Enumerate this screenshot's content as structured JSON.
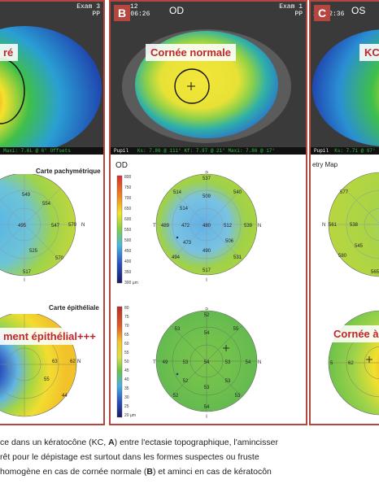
{
  "panel_a": {
    "header_right": "Exam 3",
    "header_right2": "PP",
    "topo_label": "ré",
    "pachy_title": "Carte pachymétrique",
    "pachy_values": [
      "549",
      "554",
      "495",
      "547",
      "579",
      "525",
      "570",
      "517"
    ],
    "pachy_letters": {
      "s": "S",
      "n": "N",
      "i": "I"
    },
    "epi_title": "Carte épithéliale",
    "epi_label": "ment épithélial+++",
    "epi_values": [
      "63",
      "62",
      "55",
      "44"
    ],
    "epi_letters": {
      "n": "N"
    },
    "footer": "Maxi: 7.6L @ 6°     Offsets"
  },
  "panel_b": {
    "tag": "B",
    "time": "19:06:26",
    "header_left_small": "12",
    "eye": "OD",
    "exam": "Exam 1",
    "exam2": "PP",
    "topo_label": "Cornée normale",
    "footer_left": "Pupil",
    "footer": "Ks: 7.86 @ 111°    Kf: 7.97 @ 21°    Maxi: 7.86 @ 17°",
    "od_label": "OD",
    "scale_top": [
      "800",
      "750",
      "700",
      "650",
      "600",
      "550",
      "500",
      "450",
      "400",
      "350",
      "300 µm"
    ],
    "pachy_values": {
      "s": "537",
      "sup": "509",
      "st": "514",
      "sn": "540",
      "t": "489",
      "ct": "472",
      "c": "480",
      "cn": "512",
      "n": "539",
      "it": "473",
      "ci": "490",
      "in": "506",
      "ti": "494",
      "ni": "531",
      "i": "517"
    },
    "pachy_letters": {
      "s": "S",
      "t": "T",
      "n": "N",
      "i": "I"
    },
    "scale_bottom": [
      "80",
      "75",
      "70",
      "65",
      "60",
      "55",
      "50",
      "45",
      "40",
      "35",
      "30",
      "25",
      "20 µm"
    ],
    "epi_values": {
      "s": "52",
      "st": "53",
      "sn": "55",
      "sup": "54",
      "t": "49",
      "ct": "53",
      "c": "54",
      "cn": "53",
      "n": "54",
      "it": "52",
      "ci": "53",
      "in": "53",
      "ti": "52",
      "ni": "53",
      "i": "54"
    },
    "epi_letters": {
      "s": "S",
      "t": "T",
      "n": "N",
      "i": "I"
    }
  },
  "panel_c": {
    "tag": "C",
    "time": "10:52:36",
    "eye": "OS",
    "topo_label": "KC",
    "footer_left": "Pupil",
    "footer": "Ks: 7.71 @ 97°",
    "pachy_title": "etry Map",
    "pachy_values": [
      "577",
      "561",
      "538",
      "545",
      "580",
      "565"
    ],
    "pachy_letters": {
      "n": "N"
    },
    "epi_label": "Cornée à",
    "epi_values": [
      "62",
      "5"
    ],
    "epi_letters": {
      "s": "S"
    }
  },
  "caption": {
    "line1_a": "ce dans un kératocône (KC, ",
    "line1_b": "A",
    "line1_c": ") entre l'ectasie topographique, l'amincisser",
    "line2": "rêt pour le dépistage est surtout dans les formes suspectes ou fruste",
    "line3_a": "homogène en cas de cornée normale (",
    "line3_b": "B",
    "line3_c": ") et aminci en cas de kératocôn"
  },
  "colors": {
    "frame": "#b5463f",
    "label_red": "#c0262d"
  }
}
